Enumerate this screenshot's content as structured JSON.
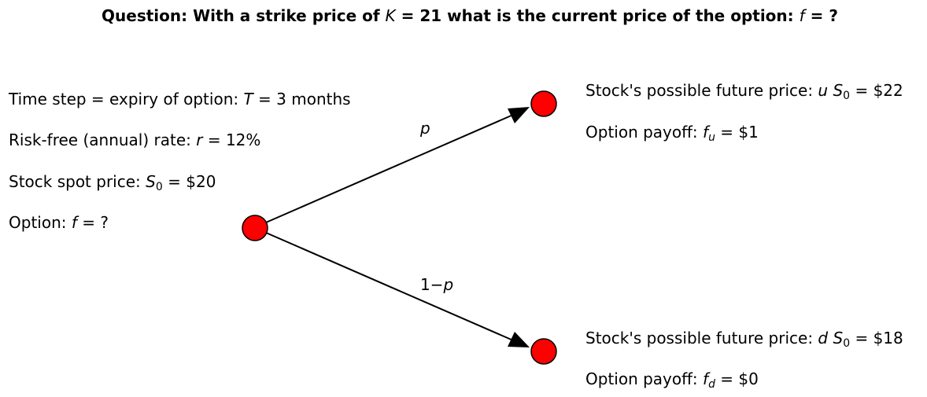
{
  "title": {
    "prefix": "Question: With a strike price of ",
    "strike_var": "K",
    "strike_eq": " = 21",
    "middle": " what is the current price of the option: ",
    "option_var": "f",
    "suffix": " = ?"
  },
  "params": {
    "time_step": {
      "text": "Time step = expiry of option:  ",
      "var": "T",
      "value": " = 3 months"
    },
    "rate": {
      "text": "Risk-free (annual) rate:  ",
      "var": "r",
      "value": " = 12%"
    },
    "spot": {
      "text": "Stock spot price:  ",
      "var": "S",
      "sub": "0",
      "value": " = $20"
    },
    "option": {
      "text": "Option:  ",
      "var": "f",
      "value": " = ?"
    }
  },
  "up": {
    "price_text": "Stock's possible future price:  ",
    "price_factor": "u",
    "price_var": "S",
    "price_sub": "0",
    "price_value": " = $22",
    "payoff_text": "Option payoff:  ",
    "payoff_var": "f",
    "payoff_sub": "u",
    "payoff_value": " = $1"
  },
  "down": {
    "price_text": "Stock's possible future price:  ",
    "price_factor": "d",
    "price_var": "S",
    "price_sub": "0",
    "price_value": " = $18",
    "payoff_text": "Option payoff:  ",
    "payoff_var": "f",
    "payoff_sub": "d",
    "payoff_value": " = $0"
  },
  "edges": {
    "up_prob": "p",
    "down_prob_prefix": "1−",
    "down_prob_var": "p"
  },
  "colors": {
    "node_fill": "#ff0000",
    "node_stroke": "#000000"
  }
}
